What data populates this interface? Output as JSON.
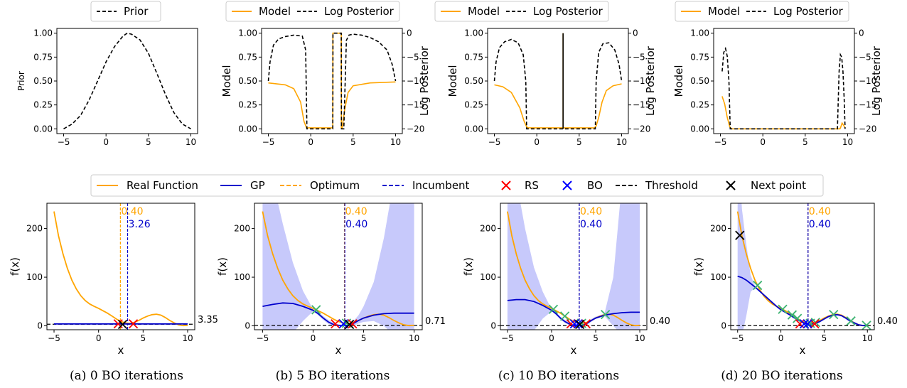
{
  "colors": {
    "model": "#ffa500",
    "posterior": "#000000",
    "real": "#ffa500",
    "gp": "#0000cc",
    "band": "#c7c9fb",
    "optimum": "#ffa500",
    "incumbent": "#0000cc",
    "rs": "#ff0000",
    "bo": "#0000ff",
    "threshold": "#000000",
    "next": "#000000",
    "obs": "#3cb371"
  },
  "legends": {
    "prior": [
      "Prior"
    ],
    "model": [
      "Model",
      "Log Posterior"
    ],
    "bottom": [
      "Real Function",
      "GP",
      "Optimum",
      "Incumbent",
      "RS",
      "BO",
      "Threshold",
      "Next point"
    ]
  },
  "chart_data": [
    {
      "type": "line",
      "panel": "a-top",
      "ylabel": "Prior",
      "xlim": [
        -5,
        10
      ],
      "ylim": [
        0,
        1
      ],
      "xticks": [
        -5,
        0,
        5,
        10
      ],
      "yticks": [
        "0.00",
        "0.25",
        "0.50",
        "0.75",
        "1.00"
      ],
      "series": [
        {
          "name": "Prior",
          "style": "dashed",
          "x": [
            -5,
            -4,
            -3,
            -2,
            -1,
            0,
            1,
            2,
            2.5,
            3,
            4,
            5,
            6,
            7,
            8,
            9,
            10
          ],
          "y": [
            0,
            0.05,
            0.14,
            0.3,
            0.5,
            0.7,
            0.86,
            0.97,
            1.0,
            0.99,
            0.93,
            0.79,
            0.58,
            0.36,
            0.17,
            0.05,
            0.0
          ]
        }
      ]
    },
    {
      "type": "line",
      "panel": "b-top",
      "ylabel": "Model",
      "y2label": "Log Posterior",
      "xlim": [
        -5,
        10
      ],
      "ylim": [
        0,
        1
      ],
      "y2lim": [
        -20,
        0
      ],
      "xticks": [
        -5,
        0,
        5,
        10
      ],
      "yticks": [
        "0.00",
        "0.25",
        "0.50",
        "0.75",
        "1.00"
      ],
      "y2ticks": [
        "0",
        "−5",
        "−10",
        "−15",
        "−20"
      ],
      "series": [
        {
          "name": "Model",
          "axis": "left",
          "x": [
            -5,
            -3,
            -2,
            -1.2,
            -0.8,
            -0.5,
            2.6,
            2.61,
            3.6,
            3.61,
            3.7,
            4.0,
            4.4,
            5,
            7,
            10
          ],
          "y": [
            0.48,
            0.46,
            0.42,
            0.28,
            0.08,
            0.01,
            0.01,
            1.0,
            1.0,
            0.01,
            0.01,
            0.2,
            0.38,
            0.45,
            0.48,
            0.49
          ]
        },
        {
          "name": "Log Posterior",
          "axis": "right",
          "x": [
            -5,
            -4.8,
            -4.4,
            -3.8,
            -3,
            -2,
            -1,
            -0.6,
            -0.45,
            -0.4,
            2.6,
            2.62,
            3.6,
            3.62,
            3.9,
            4.2,
            4.5,
            5,
            6,
            7,
            8,
            9,
            9.6,
            10
          ],
          "y": [
            -10,
            -6,
            -2.5,
            -1.2,
            -0.7,
            -0.4,
            -0.6,
            -3.5,
            -20,
            -20,
            -20,
            0,
            0,
            -20,
            -20,
            -1.5,
            -0.4,
            -0.2,
            -0.4,
            -0.9,
            -1.8,
            -3.5,
            -6.5,
            -10
          ]
        }
      ]
    },
    {
      "type": "line",
      "panel": "c-top",
      "ylabel": "Model",
      "y2label": "Log Posterior",
      "xlim": [
        -5,
        10
      ],
      "ylim": [
        0,
        1
      ],
      "y2lim": [
        -20,
        0
      ],
      "xticks": [
        -5,
        0,
        5,
        10
      ],
      "yticks": [
        "0.00",
        "0.25",
        "0.50",
        "0.75",
        "1.00"
      ],
      "y2ticks": [
        "0",
        "−5",
        "−10",
        "−15",
        "−20"
      ],
      "series": [
        {
          "name": "Model",
          "axis": "left",
          "x": [
            -5,
            -4,
            -3,
            -2,
            -1.5,
            -1.2,
            -1.0,
            6.8,
            7.0,
            7.3,
            7.7,
            8.2,
            9,
            10
          ],
          "y": [
            0.46,
            0.44,
            0.38,
            0.22,
            0.08,
            0.02,
            0.01,
            0.01,
            0.03,
            0.12,
            0.28,
            0.4,
            0.45,
            0.47
          ],
          "spike_x": 3.1
        },
        {
          "name": "Log Posterior",
          "axis": "right",
          "x": [
            -5,
            -4.8,
            -4.4,
            -3.8,
            -3,
            -2.2,
            -1.6,
            -1.3,
            -1.2,
            6.9,
            7.0,
            7.3,
            7.8,
            8.5,
            9.2,
            9.7,
            10
          ],
          "y": [
            -10,
            -6,
            -3,
            -1.8,
            -1.3,
            -2,
            -4.5,
            -10,
            -20,
            -20,
            -10,
            -4,
            -2.2,
            -2.0,
            -3.5,
            -6.5,
            -10
          ],
          "spike_x": 3.1
        }
      ]
    },
    {
      "type": "line",
      "panel": "d-top",
      "ylabel": "Model",
      "y2label": "Log Posterior",
      "xlim": [
        -5,
        10
      ],
      "ylim": [
        0,
        1
      ],
      "y2lim": [
        -20,
        0
      ],
      "xticks": [
        -5,
        0,
        5,
        10
      ],
      "yticks": [
        "0.00",
        "0.25",
        "0.50",
        "0.75",
        "1.00"
      ],
      "y2ticks": [
        "0",
        "−5",
        "−10",
        "−15",
        "−20"
      ],
      "series": [
        {
          "name": "Model",
          "axis": "left",
          "x": [
            -4.8,
            -4.5,
            -4.2,
            -3.9,
            -3.7,
            9.1,
            9.2,
            9.35,
            9.5,
            9.7
          ],
          "y": [
            0.34,
            0.26,
            0.12,
            0.02,
            0.0,
            0.0,
            0.02,
            0.06,
            0.04,
            0.01
          ]
        },
        {
          "name": "Log Posterior",
          "axis": "right",
          "x": [
            -4.8,
            -4.6,
            -4.4,
            -4.2,
            -4.0,
            -3.85,
            -3.8,
            8.8,
            8.9,
            9.0,
            9.15,
            9.3,
            9.45,
            9.6,
            9.7
          ],
          "y": [
            -8,
            -4,
            -3.2,
            -4.8,
            -10,
            -20,
            -20,
            -20,
            -14,
            -8,
            -4.5,
            -5,
            -8,
            -14,
            -20
          ]
        }
      ]
    },
    {
      "type": "line",
      "panel": "a-bottom",
      "xlabel": "x",
      "ylabel": "f(x)",
      "xlim": [
        -5,
        10
      ],
      "ylim": [
        0,
        240
      ],
      "xticks": [
        -5,
        0,
        5,
        10
      ],
      "yticks": [
        "0",
        "100",
        "200"
      ],
      "optimum_x": 2.45,
      "optimum_label": "0.40",
      "incumbent_x": 3.26,
      "incumbent_label": "3.26",
      "threshold_y": 3.35,
      "threshold_label": "3.35",
      "real": {
        "x": [
          -5,
          -4.5,
          -4,
          -3.5,
          -3,
          -2.5,
          -2,
          -1.5,
          -1,
          -0.5,
          0,
          0.5,
          1,
          1.5,
          2,
          2.5,
          3,
          3.5,
          4,
          4.5,
          5,
          5.5,
          6,
          6.5,
          7,
          7.5,
          8,
          8.5,
          9,
          9.5,
          10
        ],
        "y": [
          235,
          185,
          148,
          118,
          94,
          76,
          62,
          52,
          45,
          40,
          36,
          31,
          26,
          20,
          14,
          9,
          6,
          5,
          7,
          11,
          16,
          20,
          23,
          24,
          22,
          17,
          11,
          6,
          2,
          0.5,
          1
        ]
      },
      "gp": {
        "x": [
          -5,
          10
        ],
        "mean": [
          4,
          4
        ],
        "lower": [
          4,
          4
        ],
        "upper": [
          4,
          4
        ]
      },
      "obs_x": [],
      "rs_x": [
        2.2,
        3.9
      ],
      "bo_x": [],
      "next": {
        "x": 2.7,
        "y": 3
      }
    },
    {
      "type": "line",
      "panel": "b-bottom",
      "xlabel": "x",
      "ylabel": "f(x)",
      "xlim": [
        -5,
        10
      ],
      "ylim": [
        0,
        240
      ],
      "xticks": [
        -5,
        0,
        5,
        10
      ],
      "yticks": [
        "0",
        "100",
        "200"
      ],
      "optimum_x": 3.1,
      "optimum_label": "0.40",
      "incumbent_x": 3.14,
      "incumbent_label": "0.40",
      "threshold_y": 0.71,
      "threshold_label": "0.71",
      "real": {
        "x": [
          -5,
          -4.5,
          -4,
          -3.5,
          -3,
          -2.5,
          -2,
          -1.5,
          -1,
          -0.5,
          0,
          0.5,
          1,
          1.5,
          2,
          2.5,
          3,
          3.5,
          4,
          4.5,
          5,
          5.5,
          6,
          6.5,
          7,
          7.5,
          8,
          8.5,
          9,
          9.5,
          10
        ],
        "y": [
          235,
          185,
          148,
          118,
          94,
          76,
          62,
          52,
          45,
          40,
          36,
          31,
          26,
          20,
          14,
          9,
          6,
          5,
          7,
          11,
          16,
          20,
          23,
          24,
          22,
          17,
          11,
          6,
          2,
          0.5,
          1
        ]
      },
      "gp": {
        "x": [
          -5,
          -4,
          -3,
          -2,
          -1,
          0,
          0.5,
          1,
          1.5,
          2,
          2.5,
          3,
          3.5,
          4,
          4.5,
          5,
          6,
          7,
          8,
          9,
          10
        ],
        "mean": [
          40,
          44,
          47,
          46,
          40,
          32,
          25,
          16,
          8,
          3,
          1,
          0.5,
          1,
          5,
          11,
          16,
          22,
          25,
          26,
          26,
          26
        ],
        "lower": [
          -150,
          -100,
          -55,
          -15,
          10,
          30,
          22,
          12,
          4,
          0,
          0,
          0,
          0,
          0,
          5,
          8,
          10,
          0,
          -50,
          -120,
          -200
        ],
        "upper": [
          400,
          300,
          210,
          130,
          72,
          34,
          28,
          20,
          12,
          6,
          3,
          1,
          3,
          10,
          22,
          40,
          90,
          180,
          300,
          420,
          500
        ]
      },
      "obs_x": [
        0.3,
        3.3
      ],
      "rs_x": [
        2.2,
        3.9
      ],
      "bo_x": [
        3.0
      ],
      "next": {
        "x": 3.6,
        "y": 3
      }
    },
    {
      "type": "line",
      "panel": "c-bottom",
      "xlabel": "x",
      "ylabel": "f(x)",
      "xlim": [
        -5,
        10
      ],
      "ylim": [
        0,
        240
      ],
      "xticks": [
        -5,
        0,
        5,
        10
      ],
      "yticks": [
        "0",
        "100",
        "200"
      ],
      "optimum_x": 3.14,
      "optimum_label": "0.40",
      "incumbent_x": 3.14,
      "incumbent_label": "0.40",
      "threshold_y": 0.4,
      "threshold_label": "0.40",
      "real": {
        "x": [
          -5,
          -4.5,
          -4,
          -3.5,
          -3,
          -2.5,
          -2,
          -1.5,
          -1,
          -0.5,
          0,
          0.5,
          1,
          1.5,
          2,
          2.5,
          3,
          3.5,
          4,
          4.5,
          5,
          5.5,
          6,
          6.5,
          7,
          7.5,
          8,
          8.5,
          9,
          9.5,
          10
        ],
        "y": [
          235,
          185,
          148,
          118,
          94,
          76,
          62,
          52,
          45,
          40,
          36,
          31,
          26,
          20,
          14,
          9,
          6,
          5,
          7,
          11,
          16,
          20,
          23,
          24,
          22,
          17,
          11,
          6,
          2,
          0.5,
          1
        ]
      },
      "gp": {
        "x": [
          -5,
          -4,
          -3,
          -2,
          -1,
          0,
          0.5,
          1,
          1.5,
          2,
          2.5,
          3,
          3.5,
          4,
          4.5,
          5,
          6,
          7,
          8,
          9,
          10
        ],
        "mean": [
          52,
          54,
          54,
          50,
          42,
          32,
          25,
          16,
          9,
          4,
          1,
          0.4,
          1,
          5,
          11,
          16,
          22,
          25,
          27,
          28,
          28
        ],
        "lower": [
          -160,
          -100,
          -50,
          -10,
          15,
          30,
          22,
          13,
          6,
          1,
          0,
          0,
          0,
          2,
          8,
          14,
          20,
          0,
          -50,
          -130,
          -220
        ],
        "upper": [
          420,
          300,
          200,
          120,
          70,
          34,
          28,
          19,
          12,
          7,
          3,
          1,
          3,
          9,
          14,
          19,
          25,
          100,
          300,
          460,
          540
        ]
      },
      "obs_x": [
        0.2,
        1.5,
        3.4,
        6.1
      ],
      "rs_x": [
        2.2,
        3.9
      ],
      "bo_x": [
        3.0,
        2.6
      ],
      "next": {
        "x": 3.2,
        "y": 3
      }
    },
    {
      "type": "line",
      "panel": "d-bottom",
      "xlabel": "x",
      "ylabel": "f(x)",
      "xlim": [
        -5,
        10
      ],
      "ylim": [
        0,
        240
      ],
      "xticks": [
        -5,
        0,
        5,
        10
      ],
      "yticks": [
        "0",
        "100",
        "200"
      ],
      "optimum_x": 3.14,
      "optimum_label": "0.40",
      "incumbent_x": 3.14,
      "incumbent_label": "0.40",
      "threshold_y": 0.4,
      "threshold_label": "0.40",
      "real": {
        "x": [
          -5,
          -4.5,
          -4,
          -3.5,
          -3,
          -2.5,
          -2,
          -1.5,
          -1,
          -0.5,
          0,
          0.5,
          1,
          1.5,
          2,
          2.5,
          3,
          3.5,
          4,
          4.5,
          5,
          5.5,
          6,
          6.5,
          7,
          7.5,
          8,
          8.5,
          9,
          9.5,
          10
        ],
        "y": [
          235,
          185,
          148,
          118,
          94,
          76,
          62,
          52,
          45,
          40,
          36,
          31,
          26,
          20,
          14,
          9,
          6,
          5,
          7,
          11,
          16,
          20,
          23,
          24,
          22,
          17,
          11,
          6,
          2,
          0.5,
          1
        ]
      },
      "gp": {
        "x": [
          -5,
          -4.5,
          -4,
          -3.5,
          -3,
          -2.5,
          -2,
          -1.5,
          -1,
          -0.5,
          0,
          0.5,
          1,
          1.5,
          2,
          2.5,
          3,
          3.5,
          4,
          4.5,
          5,
          5.5,
          6,
          6.5,
          7,
          7.5,
          8,
          8.5,
          9,
          9.5,
          10
        ],
        "mean": [
          102,
          99,
          94,
          87,
          80,
          72,
          64,
          56,
          48,
          40,
          33,
          28,
          23,
          17,
          12,
          7,
          4,
          3,
          5,
          9,
          14,
          19,
          22,
          23,
          21,
          16,
          10,
          6,
          2,
          0.6,
          1
        ],
        "lower": [
          -260,
          -60,
          20,
          70,
          78,
          70,
          62,
          54,
          46,
          38,
          31,
          26,
          21,
          15,
          10,
          5,
          2,
          1,
          3,
          7,
          12,
          17,
          20,
          21,
          19,
          14,
          8,
          4,
          0,
          -1,
          -1
        ],
        "upper": [
          400,
          240,
          168,
          104,
          82,
          74,
          66,
          58,
          50,
          42,
          35,
          30,
          25,
          19,
          14,
          9,
          6,
          5,
          7,
          11,
          16,
          21,
          24,
          25,
          23,
          18,
          12,
          8,
          4,
          2,
          3
        ]
      },
      "obs_x": [
        -2.7,
        0.2,
        1.3,
        1.9,
        3.4,
        4.0,
        6.1,
        8.1,
        9.9
      ],
      "rs_x": [
        2.2,
        3.9
      ],
      "bo_x": [
        2.7,
        3.1
      ],
      "next": {
        "x": -4.75,
        "y": 186
      }
    }
  ],
  "captions": [
    "(a) 0 BO iterations",
    "(b) 5 BO iterations",
    "(c) 10 BO iterations",
    "(d) 20 BO iterations"
  ]
}
